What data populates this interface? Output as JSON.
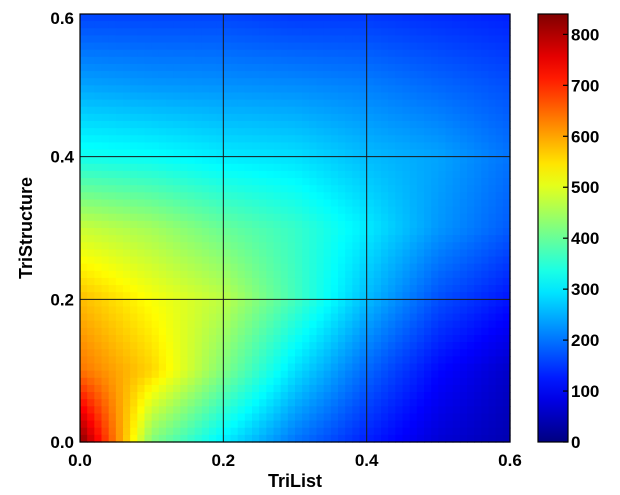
{
  "chart_data": {
    "type": "heatmap",
    "title": "",
    "xlabel": "TriList",
    "ylabel": "TriStructure",
    "xlim": [
      0.0,
      0.6
    ],
    "ylim": [
      0.0,
      0.6
    ],
    "x_ticks": [
      "0.0",
      "0.2",
      "0.4",
      "0.6"
    ],
    "y_ticks": [
      "0.0",
      "0.2",
      "0.4",
      "0.6"
    ],
    "x_tick_values": [
      0.0,
      0.2,
      0.4,
      0.6
    ],
    "y_tick_values": [
      0.0,
      0.2,
      0.4,
      0.6
    ],
    "grid": true,
    "colormap": "jet",
    "colorbar": {
      "min": 0,
      "max": 840,
      "tick_values": [
        0,
        100,
        200,
        300,
        400,
        500,
        600,
        700,
        800
      ],
      "tick_labels": [
        "0",
        "100",
        "200",
        "300",
        "400",
        "500",
        "600",
        "700",
        "800"
      ]
    },
    "x": [
      0.0,
      0.1,
      0.2,
      0.3,
      0.4,
      0.5,
      0.6
    ],
    "y": [
      0.0,
      0.1,
      0.2,
      0.3,
      0.4,
      0.5,
      0.6
    ],
    "z": [
      [
        840,
        420,
        300,
        200,
        130,
        70,
        40
      ],
      [
        640,
        560,
        420,
        290,
        190,
        110,
        60
      ],
      [
        580,
        520,
        470,
        370,
        260,
        170,
        120
      ],
      [
        480,
        450,
        400,
        360,
        300,
        230,
        180
      ],
      [
        330,
        320,
        300,
        290,
        260,
        240,
        200
      ],
      [
        240,
        230,
        225,
        220,
        210,
        190,
        170
      ],
      [
        160,
        160,
        160,
        150,
        150,
        140,
        130
      ]
    ]
  }
}
